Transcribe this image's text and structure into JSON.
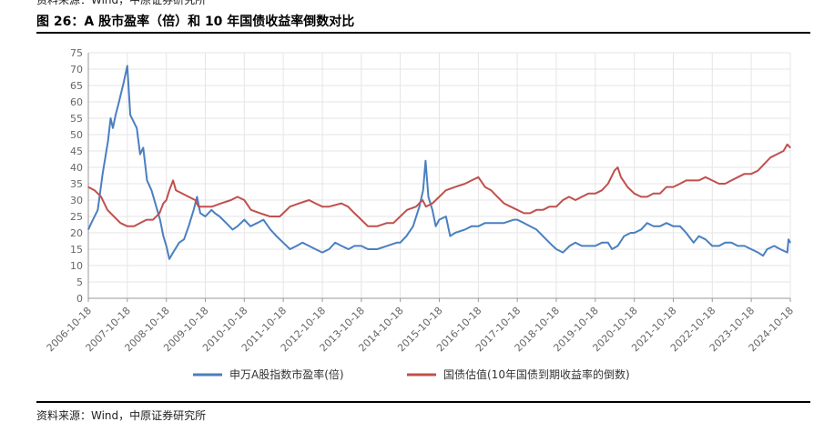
{
  "header": {
    "source_top": "资料来源：Wind，中原证券研究所",
    "title": "图 26：A 股市盈率（倍）和 10 年国债收益率倒数对比"
  },
  "footer": {
    "source": "资料来源：Wind，中原证券研究所"
  },
  "colors": {
    "series1": "#4a7fc1",
    "series2": "#c0504d",
    "grid": "#e5e5e5",
    "axis": "#999999"
  },
  "chart_data": {
    "type": "line",
    "title": "",
    "xlabel": "",
    "ylabel": "",
    "ylim": [
      0,
      75
    ],
    "yticks": [
      0,
      5,
      10,
      15,
      20,
      25,
      30,
      35,
      40,
      45,
      50,
      55,
      60,
      65,
      70,
      75
    ],
    "grid": true,
    "legend_position": "bottom",
    "x_start": "2006-10-18",
    "x_end": "2024-10-18",
    "xticks": [
      "2006-10-18",
      "2007-10-18",
      "2008-10-18",
      "2009-10-18",
      "2010-10-18",
      "2011-10-18",
      "2012-10-18",
      "2013-10-18",
      "2014-10-18",
      "2015-10-18",
      "2016-10-18",
      "2017-10-18",
      "2018-10-18",
      "2019-10-18",
      "2020-10-18",
      "2021-10-18",
      "2022-10-18",
      "2023-10-18",
      "2024-10-18"
    ],
    "series": [
      {
        "name": "申万A股指数市盈率(倍)",
        "color": "#4a7fc1",
        "points": [
          [
            "2006-10-18",
            21
          ],
          [
            "2006-11-15",
            23
          ],
          [
            "2007-01-15",
            27
          ],
          [
            "2007-03-01",
            38
          ],
          [
            "2007-04-20",
            48
          ],
          [
            "2007-05-15",
            55
          ],
          [
            "2007-06-05",
            52
          ],
          [
            "2007-07-01",
            56
          ],
          [
            "2007-08-01",
            60
          ],
          [
            "2007-09-15",
            66
          ],
          [
            "2007-10-18",
            71
          ],
          [
            "2007-11-15",
            56
          ],
          [
            "2008-01-15",
            52
          ],
          [
            "2008-02-15",
            44
          ],
          [
            "2008-03-15",
            46
          ],
          [
            "2008-04-20",
            36
          ],
          [
            "2008-06-01",
            33
          ],
          [
            "2008-07-15",
            28
          ],
          [
            "2008-08-20",
            24
          ],
          [
            "2008-09-20",
            19
          ],
          [
            "2008-10-18",
            16
          ],
          [
            "2008-11-15",
            12
          ],
          [
            "2008-12-20",
            14
          ],
          [
            "2009-02-15",
            17
          ],
          [
            "2009-04-01",
            18
          ],
          [
            "2009-05-15",
            22
          ],
          [
            "2009-07-01",
            27
          ],
          [
            "2009-08-01",
            31
          ],
          [
            "2009-09-01",
            26
          ],
          [
            "2009-10-18",
            25
          ],
          [
            "2009-12-15",
            27
          ],
          [
            "2010-01-15",
            26
          ],
          [
            "2010-03-01",
            25
          ],
          [
            "2010-05-01",
            23
          ],
          [
            "2010-07-01",
            21
          ],
          [
            "2010-08-15",
            22
          ],
          [
            "2010-10-18",
            24
          ],
          [
            "2010-12-15",
            22
          ],
          [
            "2011-02-15",
            23
          ],
          [
            "2011-04-15",
            24
          ],
          [
            "2011-06-20",
            21
          ],
          [
            "2011-08-15",
            19
          ],
          [
            "2011-10-18",
            17
          ],
          [
            "2011-12-20",
            15
          ],
          [
            "2012-02-20",
            16
          ],
          [
            "2012-04-15",
            17
          ],
          [
            "2012-06-15",
            16
          ],
          [
            "2012-08-15",
            15
          ],
          [
            "2012-10-18",
            14
          ],
          [
            "2012-12-20",
            15
          ],
          [
            "2013-02-15",
            17
          ],
          [
            "2013-04-15",
            16
          ],
          [
            "2013-06-20",
            15
          ],
          [
            "2013-08-15",
            16
          ],
          [
            "2013-10-18",
            16
          ],
          [
            "2013-12-20",
            15
          ],
          [
            "2014-03-15",
            15
          ],
          [
            "2014-06-15",
            16
          ],
          [
            "2014-09-15",
            17
          ],
          [
            "2014-10-18",
            17
          ],
          [
            "2014-12-15",
            19
          ],
          [
            "2015-02-15",
            22
          ],
          [
            "2015-04-15",
            28
          ],
          [
            "2015-05-20",
            33
          ],
          [
            "2015-06-12",
            42
          ],
          [
            "2015-07-08",
            31
          ],
          [
            "2015-08-15",
            27
          ],
          [
            "2015-09-15",
            22
          ],
          [
            "2015-10-18",
            24
          ],
          [
            "2015-12-20",
            25
          ],
          [
            "2016-01-28",
            19
          ],
          [
            "2016-03-15",
            20
          ],
          [
            "2016-06-15",
            21
          ],
          [
            "2016-08-15",
            22
          ],
          [
            "2016-10-18",
            22
          ],
          [
            "2016-12-20",
            23
          ],
          [
            "2017-03-15",
            23
          ],
          [
            "2017-06-15",
            23
          ],
          [
            "2017-09-15",
            24
          ],
          [
            "2017-10-18",
            24
          ],
          [
            "2017-12-20",
            23
          ],
          [
            "2018-02-15",
            22
          ],
          [
            "2018-04-15",
            21
          ],
          [
            "2018-07-15",
            18
          ],
          [
            "2018-09-15",
            16
          ],
          [
            "2018-10-18",
            15
          ],
          [
            "2018-12-20",
            14
          ],
          [
            "2019-02-20",
            16
          ],
          [
            "2019-04-15",
            17
          ],
          [
            "2019-06-15",
            16
          ],
          [
            "2019-08-15",
            16
          ],
          [
            "2019-10-18",
            16
          ],
          [
            "2019-12-20",
            17
          ],
          [
            "2020-02-15",
            17
          ],
          [
            "2020-03-23",
            15
          ],
          [
            "2020-05-15",
            16
          ],
          [
            "2020-07-15",
            19
          ],
          [
            "2020-09-15",
            20
          ],
          [
            "2020-10-18",
            20
          ],
          [
            "2020-12-20",
            21
          ],
          [
            "2021-02-15",
            23
          ],
          [
            "2021-04-15",
            22
          ],
          [
            "2021-06-15",
            22
          ],
          [
            "2021-08-15",
            23
          ],
          [
            "2021-10-18",
            22
          ],
          [
            "2021-12-20",
            22
          ],
          [
            "2022-02-15",
            20
          ],
          [
            "2022-04-26",
            17
          ],
          [
            "2022-06-15",
            19
          ],
          [
            "2022-08-15",
            18
          ],
          [
            "2022-10-18",
            16
          ],
          [
            "2022-12-20",
            16
          ],
          [
            "2023-02-15",
            17
          ],
          [
            "2023-04-15",
            17
          ],
          [
            "2023-06-15",
            16
          ],
          [
            "2023-08-15",
            16
          ],
          [
            "2023-10-18",
            15
          ],
          [
            "2023-12-20",
            14
          ],
          [
            "2024-02-05",
            13
          ],
          [
            "2024-03-15",
            15
          ],
          [
            "2024-05-20",
            16
          ],
          [
            "2024-07-15",
            15
          ],
          [
            "2024-09-20",
            14
          ],
          [
            "2024-10-01",
            18
          ],
          [
            "2024-10-18",
            17
          ]
        ]
      },
      {
        "name": "国债估值(10年国债到期收益率的倒数)",
        "color": "#c0504d",
        "points": [
          [
            "2006-10-18",
            34
          ],
          [
            "2006-12-15",
            33
          ],
          [
            "2007-02-15",
            31
          ],
          [
            "2007-04-15",
            27
          ],
          [
            "2007-06-15",
            25
          ],
          [
            "2007-08-15",
            23
          ],
          [
            "2007-10-18",
            22
          ],
          [
            "2007-12-20",
            22
          ],
          [
            "2008-02-15",
            23
          ],
          [
            "2008-04-15",
            24
          ],
          [
            "2008-06-15",
            24
          ],
          [
            "2008-08-15",
            26
          ],
          [
            "2008-09-20",
            29
          ],
          [
            "2008-10-18",
            30
          ],
          [
            "2008-11-15",
            33
          ],
          [
            "2008-12-20",
            36
          ],
          [
            "2009-01-15",
            33
          ],
          [
            "2009-03-15",
            32
          ],
          [
            "2009-05-15",
            31
          ],
          [
            "2009-07-15",
            30
          ],
          [
            "2009-08-15",
            28
          ],
          [
            "2009-10-18",
            28
          ],
          [
            "2009-12-20",
            28
          ],
          [
            "2010-03-15",
            29
          ],
          [
            "2010-06-15",
            30
          ],
          [
            "2010-08-15",
            31
          ],
          [
            "2010-10-18",
            30
          ],
          [
            "2010-12-20",
            27
          ],
          [
            "2011-03-15",
            26
          ],
          [
            "2011-06-15",
            25
          ],
          [
            "2011-09-15",
            25
          ],
          [
            "2011-10-18",
            26
          ],
          [
            "2011-12-20",
            28
          ],
          [
            "2012-03-15",
            29
          ],
          [
            "2012-06-15",
            30
          ],
          [
            "2012-08-15",
            29
          ],
          [
            "2012-10-18",
            28
          ],
          [
            "2012-12-20",
            28
          ],
          [
            "2013-04-15",
            29
          ],
          [
            "2013-06-15",
            28
          ],
          [
            "2013-08-15",
            26
          ],
          [
            "2013-10-18",
            24
          ],
          [
            "2013-12-20",
            22
          ],
          [
            "2014-03-15",
            22
          ],
          [
            "2014-06-15",
            23
          ],
          [
            "2014-08-15",
            23
          ],
          [
            "2014-10-18",
            25
          ],
          [
            "2014-12-20",
            27
          ],
          [
            "2015-03-15",
            28
          ],
          [
            "2015-05-15",
            30
          ],
          [
            "2015-06-15",
            28
          ],
          [
            "2015-08-15",
            29
          ],
          [
            "2015-10-18",
            31
          ],
          [
            "2015-12-20",
            33
          ],
          [
            "2016-03-15",
            34
          ],
          [
            "2016-06-15",
            35
          ],
          [
            "2016-08-15",
            36
          ],
          [
            "2016-10-18",
            37
          ],
          [
            "2016-12-20",
            34
          ],
          [
            "2017-02-15",
            33
          ],
          [
            "2017-04-15",
            31
          ],
          [
            "2017-06-15",
            29
          ],
          [
            "2017-08-15",
            28
          ],
          [
            "2017-10-18",
            27
          ],
          [
            "2017-12-20",
            26
          ],
          [
            "2018-02-15",
            26
          ],
          [
            "2018-04-15",
            27
          ],
          [
            "2018-06-15",
            27
          ],
          [
            "2018-08-15",
            28
          ],
          [
            "2018-10-18",
            28
          ],
          [
            "2018-12-20",
            30
          ],
          [
            "2019-02-15",
            31
          ],
          [
            "2019-04-15",
            30
          ],
          [
            "2019-06-15",
            31
          ],
          [
            "2019-08-15",
            32
          ],
          [
            "2019-10-18",
            32
          ],
          [
            "2019-12-20",
            33
          ],
          [
            "2020-02-15",
            35
          ],
          [
            "2020-04-15",
            39
          ],
          [
            "2020-05-15",
            40
          ],
          [
            "2020-06-15",
            37
          ],
          [
            "2020-08-15",
            34
          ],
          [
            "2020-10-18",
            32
          ],
          [
            "2020-12-20",
            31
          ],
          [
            "2021-02-15",
            31
          ],
          [
            "2021-04-15",
            32
          ],
          [
            "2021-06-15",
            32
          ],
          [
            "2021-08-15",
            34
          ],
          [
            "2021-10-18",
            34
          ],
          [
            "2021-12-20",
            35
          ],
          [
            "2022-02-15",
            36
          ],
          [
            "2022-04-15",
            36
          ],
          [
            "2022-06-15",
            36
          ],
          [
            "2022-08-15",
            37
          ],
          [
            "2022-10-18",
            36
          ],
          [
            "2022-12-20",
            35
          ],
          [
            "2023-02-15",
            35
          ],
          [
            "2023-04-15",
            36
          ],
          [
            "2023-06-15",
            37
          ],
          [
            "2023-08-15",
            38
          ],
          [
            "2023-10-18",
            38
          ],
          [
            "2023-12-20",
            39
          ],
          [
            "2024-02-15",
            41
          ],
          [
            "2024-04-15",
            43
          ],
          [
            "2024-06-15",
            44
          ],
          [
            "2024-08-15",
            45
          ],
          [
            "2024-09-20",
            47
          ],
          [
            "2024-10-18",
            46
          ]
        ]
      }
    ]
  }
}
